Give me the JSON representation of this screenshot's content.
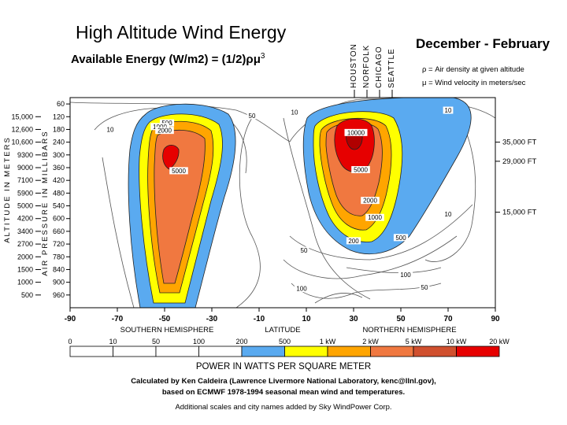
{
  "chart_data": {
    "type": "heatmap",
    "title": "High Altitude Wind Energy",
    "subtitle": "Available Energy (W/m2) = (1/2)ρμ",
    "subtitle_exponent": "3",
    "season": "December - February",
    "definitions": [
      "ρ = Air density at given altitude",
      "μ = Wind velocity in meters/sec"
    ],
    "cities": [
      "HOUSTON",
      "NORFOLK",
      "CHICAGO",
      "SEATTLE"
    ],
    "x_axis": {
      "label": "LATITUDE",
      "ticks": [
        -90,
        -70,
        -50,
        -30,
        -10,
        10,
        30,
        50,
        70,
        90
      ],
      "xlim": [
        -90,
        90
      ],
      "hemispheres": [
        "SOUTHERN HEMISPHERE",
        "NORTHERN HEMISPHERE"
      ]
    },
    "y_axis_pressure": {
      "label": "AIR PRESSURE IN MILLIBARS",
      "ticks": [
        60,
        120,
        180,
        240,
        300,
        360,
        420,
        480,
        540,
        600,
        660,
        720,
        780,
        840,
        900,
        960
      ],
      "ylim": [
        30,
        1020
      ]
    },
    "y_axis_altitude": {
      "label": "ALTITUDE IN METERS",
      "ticks": [
        "15,000",
        "12,600",
        "10,600",
        "9300",
        "9000",
        "7100",
        "5900",
        "5000",
        "4200",
        "3400",
        "2700",
        "2000",
        "1500",
        "1000",
        "500"
      ]
    },
    "y_axis_feet": {
      "ticks": [
        {
          "label": "35,000 FT",
          "pressure": 240
        },
        {
          "label": "29,000 FT",
          "pressure": 330
        },
        {
          "label": "15,000 FT",
          "pressure": 570
        }
      ]
    },
    "contour_labels": [
      {
        "text": "50",
        "lat": -13,
        "p": 120
      },
      {
        "text": "10",
        "lat": 5,
        "p": 105
      },
      {
        "text": "10",
        "lat": 70,
        "p": 95
      },
      {
        "text": "10",
        "lat": -73,
        "p": 185
      },
      {
        "text": "500",
        "lat": -49,
        "p": 155
      },
      {
        "text": "1000",
        "lat": -52,
        "p": 172
      },
      {
        "text": "2000",
        "lat": -50,
        "p": 190
      },
      {
        "text": "5000",
        "lat": -44,
        "p": 380
      },
      {
        "text": "10000",
        "lat": 31,
        "p": 200
      },
      {
        "text": "5000",
        "lat": 33,
        "p": 375
      },
      {
        "text": "2000",
        "lat": 37,
        "p": 520
      },
      {
        "text": "1000",
        "lat": 39,
        "p": 600
      },
      {
        "text": "500",
        "lat": 50,
        "p": 695
      },
      {
        "text": "200",
        "lat": 30,
        "p": 710
      },
      {
        "text": "10",
        "lat": 70,
        "p": 585
      },
      {
        "text": "50",
        "lat": 9,
        "p": 755
      },
      {
        "text": "100",
        "lat": 52,
        "p": 870
      },
      {
        "text": "100",
        "lat": 8,
        "p": 935
      },
      {
        "text": "50",
        "lat": 60,
        "p": 930
      }
    ],
    "colorbar": {
      "title": "POWER IN WATTS PER SQUARE METER",
      "labels": [
        "0",
        "10",
        "50",
        "100",
        "200",
        "500",
        "1 kW",
        "2 kW",
        "5 kW",
        "10 kW",
        "20 kW"
      ],
      "colors": [
        "#ffffff",
        "#ffffff",
        "#ffffff",
        "#ffffff",
        "#5aaaf0",
        "#ffff00",
        "#ffa500",
        "#f07840",
        "#d0502e",
        "#e60000"
      ]
    }
  },
  "credits": [
    "Calculated by Ken Caldeira (Lawrence Livermore National Laboratory, kenc@llnl.gov),",
    "based on ECMWF 1978-1994 seasonal mean wind and temperatures.",
    "Additional scales and city names added by Sky WindPower Corp."
  ]
}
